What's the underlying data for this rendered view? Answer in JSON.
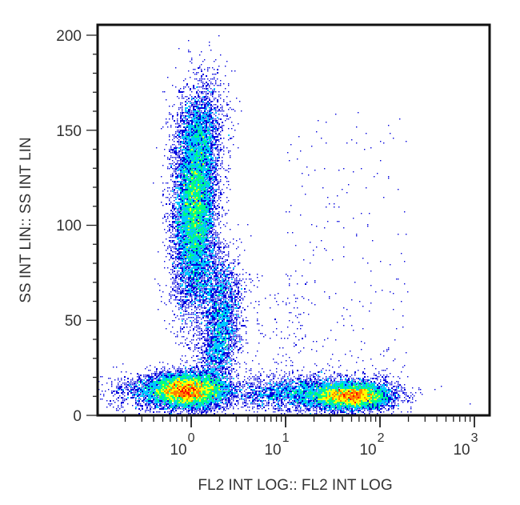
{
  "chart_data": {
    "type": "scatter",
    "subtype": "flow-cytometry density dot plot",
    "title": "",
    "xlabel": "FL2 INT LOG:: FL2 INT LOG",
    "ylabel": "SS INT LIN:: SS INT LIN",
    "x_scale": "log",
    "xlim": [
      0.1,
      1000
    ],
    "x_ticks": [
      {
        "value": 1,
        "base": "10",
        "exp": "0"
      },
      {
        "value": 10,
        "base": "10",
        "exp": "1"
      },
      {
        "value": 100,
        "base": "10",
        "exp": "2"
      },
      {
        "value": 1000,
        "base": "10",
        "exp": "3"
      }
    ],
    "y_scale": "linear",
    "ylim": [
      0,
      200
    ],
    "y_ticks": [
      "0",
      "50",
      "100",
      "150",
      "200"
    ],
    "y_minor_step": 10,
    "grid": false,
    "legend": "none",
    "color_scale": [
      "#0000dd",
      "#00c8ff",
      "#00ff80",
      "#ffff00",
      "#ff8000",
      "#ff0000"
    ],
    "populations": [
      {
        "name": "upper-left cluster (high SS, FL2 ~10^0)",
        "x_center": 1.1,
        "y_center": 110,
        "x_spread_decades": 0.13,
        "y_spread": 28,
        "peak_color": "yellow-green"
      },
      {
        "name": "bottom-left cluster (low SS, FL2 ~10^0)",
        "x_center": 0.9,
        "y_center": 13,
        "x_spread_decades": 0.22,
        "y_spread": 5,
        "peak_color": "orange-red"
      },
      {
        "name": "bottom-right cluster (low SS, FL2 ~50)",
        "x_center": 50,
        "y_center": 10,
        "x_spread_decades": 0.35,
        "y_spread": 4,
        "peak_color": "red"
      },
      {
        "name": "bridge between clusters",
        "x_center": 2.0,
        "y_center": 40,
        "x_spread_decades": 0.12,
        "y_spread": 18,
        "peak_color": "cyan"
      },
      {
        "name": "sparse scattered events",
        "x_range": [
          10,
          200
        ],
        "y_range": [
          20,
          160
        ],
        "peak_color": "blue"
      }
    ]
  },
  "axes": {
    "x_title": "FL2 INT LOG:: FL2 INT LOG",
    "y_title": "SS INT LIN:: SS INT LIN",
    "y_labels": [
      "0",
      "50",
      "100",
      "150",
      "200"
    ],
    "x_labels": [
      {
        "base": "10",
        "exp": "0"
      },
      {
        "base": "10",
        "exp": "1"
      },
      {
        "base": "10",
        "exp": "2"
      },
      {
        "base": "10",
        "exp": "3"
      }
    ]
  }
}
